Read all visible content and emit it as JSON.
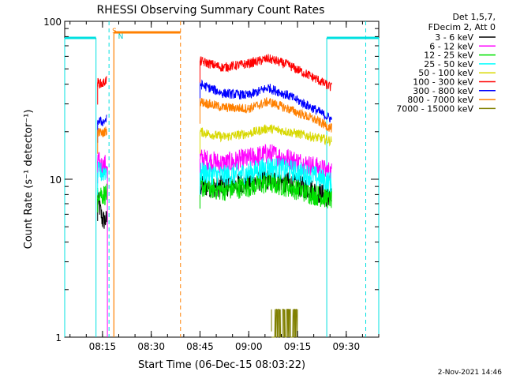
{
  "chart_data": {
    "type": "line",
    "title": "RHESSI Observing Summary Count Rates",
    "xlabel": "Start Time (06-Dec-15 08:03:22)",
    "ylabel": "Count Rate (s⁻¹ detector⁻¹)",
    "y_scale": "log",
    "ylim": [
      1,
      100
    ],
    "x_range": [
      "08:03:22",
      "09:40:00"
    ],
    "x_ticks": [
      "08:15",
      "08:30",
      "08:45",
      "09:00",
      "09:15",
      "09:30"
    ],
    "y_ticks": [
      "1",
      "10",
      "100"
    ],
    "corner_text": [
      "Det 1,5,7,",
      "FDecim 2, Att 0"
    ],
    "footer": "2-Nov-2021 14:46",
    "flag_labels": {
      "S": "S",
      "N": "N"
    },
    "colors": {
      "ch1": "#000000",
      "ch2": "#ff00ff",
      "ch3": "#00e000",
      "ch4": "#00ffff",
      "ch5": "#d8d800",
      "ch6": "#ff0000",
      "ch7": "#0000ff",
      "ch8": "#ff8000",
      "ch9": "#808000",
      "saa": "#00e0e0",
      "night": "#ff8000"
    },
    "series": [
      {
        "name": "3 - 6 keV",
        "color": "#000000",
        "segments": [
          {
            "t": [
              "08:13:30",
              "08:15:00",
              "08:16:20"
            ],
            "v": [
              7.5,
              5.5,
              5.5
            ]
          },
          {
            "t": [
              "08:45:00",
              "08:52:00",
              "09:00:00",
              "09:06:00",
              "09:12:00",
              "09:20:00",
              "09:25:30"
            ],
            "v": [
              9,
              9,
              9.5,
              10,
              9.5,
              8.5,
              7.5
            ]
          }
        ]
      },
      {
        "name": "6 - 12 keV",
        "color": "#ff00ff",
        "segments": [
          {
            "t": [
              "08:13:30",
              "08:15:00",
              "08:16:20"
            ],
            "v": [
              13,
              12,
              12.5
            ]
          },
          {
            "t": [
              "08:45:00",
              "08:52:00",
              "09:00:00",
              "09:06:00",
              "09:12:00",
              "09:20:00",
              "09:25:30"
            ],
            "v": [
              13.5,
              12.5,
              13.5,
              14.5,
              13.5,
              12,
              11
            ]
          }
        ]
      },
      {
        "name": "12 - 25 keV",
        "color": "#00e000",
        "segments": [
          {
            "t": [
              "08:13:30",
              "08:15:00",
              "08:16:20"
            ],
            "v": [
              8.5,
              8,
              8
            ]
          },
          {
            "t": [
              "08:45:00",
              "08:52:00",
              "09:00:00",
              "09:06:00",
              "09:12:00",
              "09:20:00",
              "09:25:30"
            ],
            "v": [
              9,
              8.5,
              9,
              9.5,
              9,
              8,
              7.5
            ]
          }
        ]
      },
      {
        "name": "25 - 50 keV",
        "color": "#00ffff",
        "segments": [
          {
            "t": [
              "08:13:30",
              "08:15:00",
              "08:16:20"
            ],
            "v": [
              11,
              11,
              11.5
            ]
          },
          {
            "t": [
              "08:45:00",
              "08:52:00",
              "09:00:00",
              "09:06:00",
              "09:12:00",
              "09:20:00",
              "09:25:30"
            ],
            "v": [
              11,
              10.5,
              11,
              12,
              11.5,
              10.5,
              9.5
            ]
          }
        ]
      },
      {
        "name": "50 - 100 keV",
        "color": "#d8d800",
        "segments": [
          {
            "t": [
              "08:45:00",
              "08:52:00",
              "09:00:00",
              "09:06:00",
              "09:12:00",
              "09:20:00",
              "09:25:30"
            ],
            "v": [
              20,
              18.5,
              19.5,
              21,
              20,
              18.5,
              17.5
            ]
          }
        ]
      },
      {
        "name": "100 - 300 keV",
        "color": "#ff0000",
        "segments": [
          {
            "t": [
              "08:13:30",
              "08:15:00",
              "08:16:20"
            ],
            "v": [
              41,
              40,
              43
            ]
          },
          {
            "t": [
              "08:45:00",
              "08:52:00",
              "09:00:00",
              "09:06:00",
              "09:12:00",
              "09:20:00",
              "09:25:30"
            ],
            "v": [
              56,
              51,
              54,
              58,
              53,
              44,
              38
            ]
          }
        ]
      },
      {
        "name": "300 - 800 keV",
        "color": "#0000ff",
        "segments": [
          {
            "t": [
              "08:13:30",
              "08:15:00",
              "08:16:20"
            ],
            "v": [
              23.5,
              23,
              24
            ]
          },
          {
            "t": [
              "08:45:00",
              "08:52:00",
              "09:00:00",
              "09:06:00",
              "09:12:00",
              "09:20:00",
              "09:25:30"
            ],
            "v": [
              40,
              35,
              34,
              38,
              34,
              28,
              24
            ]
          }
        ]
      },
      {
        "name": "800 - 7000 keV",
        "color": "#ff8000",
        "segments": [
          {
            "t": [
              "08:13:30",
              "08:15:00",
              "08:16:20"
            ],
            "v": [
              20,
              19.5,
              20.5
            ]
          },
          {
            "t": [
              "08:45:00",
              "08:52:00",
              "09:00:00",
              "09:06:00",
              "09:12:00",
              "09:20:00",
              "09:25:30"
            ],
            "v": [
              31,
              28.5,
              28,
              31,
              28,
              24,
              21
            ]
          }
        ]
      },
      {
        "name": "7000 - 15000 keV",
        "color": "#808000",
        "segments": [
          {
            "t": [
              "09:07:00",
              "09:09:00",
              "09:12:00",
              "09:15:00"
            ],
            "v": [
              1.5,
              1.5,
              1.5,
              1.5
            ]
          }
        ]
      }
    ],
    "events": {
      "saa": [
        [
          "08:03:22",
          "08:13:00"
        ],
        [
          "09:24:00",
          "09:40:00"
        ]
      ],
      "night": [
        [
          "08:18:30",
          "08:39:00"
        ]
      ],
      "dashed_cyan": [
        "08:17:00",
        "09:36:00"
      ],
      "dashed_orange": [
        "08:39:00"
      ],
      "magenta_line": "08:16:30"
    }
  }
}
